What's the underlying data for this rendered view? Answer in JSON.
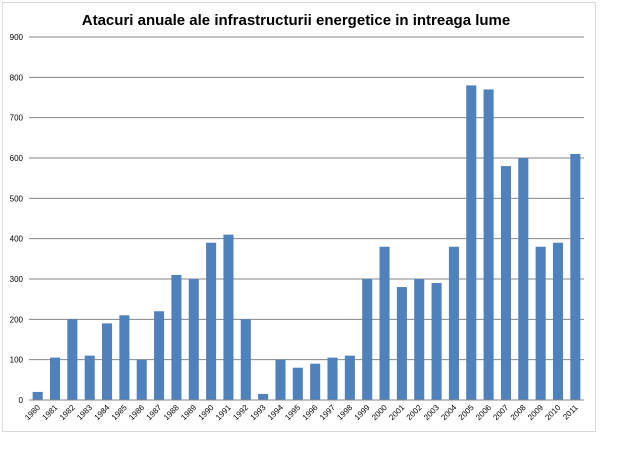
{
  "chart_data": {
    "type": "bar",
    "title": "Atacuri anuale ale infrastructurii energetice in intreaga lume",
    "xlabel": "",
    "ylabel": "",
    "ylim": [
      0,
      900
    ],
    "yticks": [
      0,
      100,
      200,
      300,
      400,
      500,
      600,
      700,
      800,
      900
    ],
    "grid": true,
    "legend": "none",
    "bar_color": "#4f81bd",
    "categories": [
      "1980",
      "1981",
      "1982",
      "1983",
      "1984",
      "1985",
      "1986",
      "1987",
      "1988",
      "1989",
      "1990",
      "1991",
      "1992",
      "1993",
      "1994",
      "1995",
      "1996",
      "1997",
      "1998",
      "1999",
      "2000",
      "2001",
      "2002",
      "2003",
      "2004",
      "2005",
      "2006",
      "2007",
      "2008",
      "2009",
      "2010",
      "2011"
    ],
    "values": [
      20,
      105,
      200,
      110,
      190,
      210,
      100,
      220,
      310,
      300,
      390,
      410,
      200,
      15,
      100,
      80,
      90,
      105,
      110,
      300,
      380,
      280,
      300,
      290,
      380,
      780,
      770,
      580,
      600,
      380,
      390,
      610
    ]
  }
}
